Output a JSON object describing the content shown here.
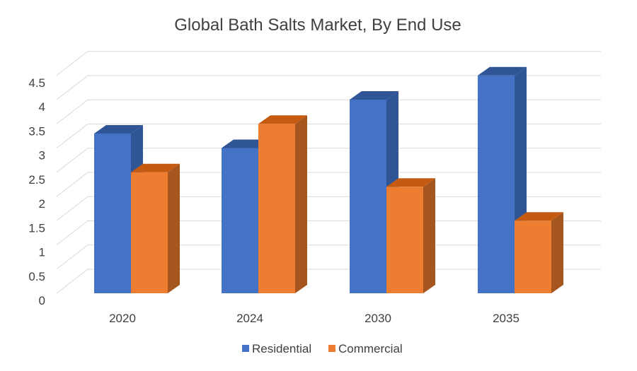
{
  "chart_data": {
    "type": "bar",
    "title": "Global Bath Salts Market, By End Use",
    "categories": [
      "2020",
      "2024",
      "2030",
      "2035"
    ],
    "series": [
      {
        "name": "Residential",
        "values": [
          3.3,
          3.0,
          4.0,
          4.5
        ],
        "color": "#4472C4",
        "side_color": "#2F5597",
        "top_color": "#2F5597"
      },
      {
        "name": "Commercial",
        "values": [
          2.5,
          3.5,
          2.2,
          1.5
        ],
        "color": "#ED7D31",
        "side_color": "#A5561E",
        "top_color": "#C55A11"
      }
    ],
    "y_ticks": [
      "0",
      "0.5",
      "1",
      "1.5",
      "2",
      "2.5",
      "3",
      "3.5",
      "4",
      "4.5"
    ],
    "ylim": [
      0,
      4.5
    ],
    "grid": true,
    "legend_position": "bottom",
    "style": "3d-clustered-column"
  }
}
